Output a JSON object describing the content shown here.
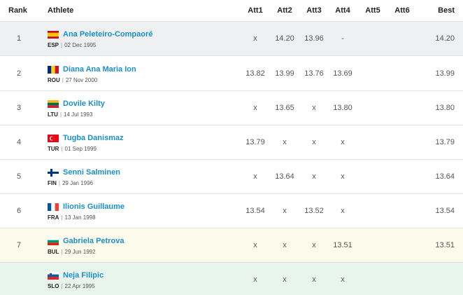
{
  "columns": {
    "rank": "Rank",
    "athlete": "Athlete",
    "att1": "Att1",
    "att2": "Att2",
    "att3": "Att3",
    "att4": "Att4",
    "att5": "Att5",
    "att6": "Att6",
    "best": "Best"
  },
  "rows": [
    {
      "rank": "1",
      "name": "Ana Peleteiro-Compaoré",
      "country": "ESP",
      "dob": "02 Dec 1995",
      "flag": "spain-flag-icon",
      "att1": "x",
      "att2": "14.20",
      "att3": "13.96",
      "att4": "-",
      "att5": "",
      "att6": "",
      "best": "14.20"
    },
    {
      "rank": "2",
      "name": "Diana Ana Maria Ion",
      "country": "ROU",
      "dob": "27 Nov 2000",
      "flag": "romania-flag-icon",
      "att1": "13.82",
      "att2": "13.99",
      "att3": "13.76",
      "att4": "13.69",
      "att5": "",
      "att6": "",
      "best": "13.99"
    },
    {
      "rank": "3",
      "name": "Dovile Kilty",
      "country": "LTU",
      "dob": "14 Jul 1993",
      "flag": "lithuania-flag-icon",
      "att1": "x",
      "att2": "13.65",
      "att3": "x",
      "att4": "13.80",
      "att5": "",
      "att6": "",
      "best": "13.80"
    },
    {
      "rank": "4",
      "name": "Tugba Danismaz",
      "country": "TUR",
      "dob": "01 Sep 1999",
      "flag": "turkey-flag-icon",
      "att1": "13.79",
      "att2": "x",
      "att3": "x",
      "att4": "x",
      "att5": "",
      "att6": "",
      "best": "13.79"
    },
    {
      "rank": "5",
      "name": "Senni Salminen",
      "country": "FIN",
      "dob": "29 Jan 1996",
      "flag": "finland-flag-icon",
      "att1": "x",
      "att2": "13.64",
      "att3": "x",
      "att4": "x",
      "att5": "",
      "att6": "",
      "best": "13.64"
    },
    {
      "rank": "6",
      "name": "Ilionis Guillaume",
      "country": "FRA",
      "dob": "13 Jan 1998",
      "flag": "france-flag-icon",
      "att1": "13.54",
      "att2": "x",
      "att3": "13.52",
      "att4": "x",
      "att5": "",
      "att6": "",
      "best": "13.54"
    },
    {
      "rank": "7",
      "name": "Gabriela Petrova",
      "country": "BUL",
      "dob": "29 Jun 1992",
      "flag": "bulgaria-flag-icon",
      "att1": "x",
      "att2": "x",
      "att3": "x",
      "att4": "13.51",
      "att5": "",
      "att6": "",
      "best": "13.51"
    },
    {
      "rank": "",
      "name": "Neja Filipic",
      "country": "SLO",
      "dob": "22 Apr 1995",
      "flag": "slovenia-flag-icon",
      "att1": "x",
      "att2": "x",
      "att3": "x",
      "att4": "x",
      "att5": "",
      "att6": "",
      "best": ""
    }
  ],
  "date_separator": "|"
}
